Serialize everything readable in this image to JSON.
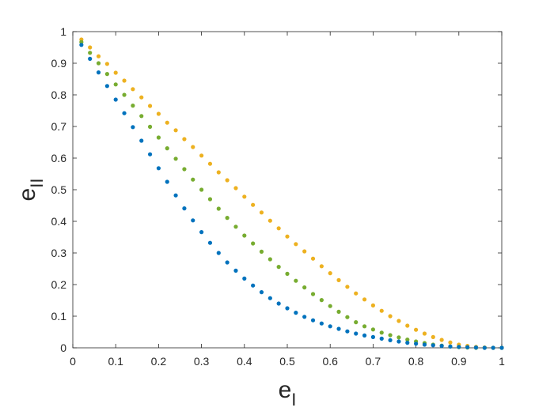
{
  "chart_data": {
    "type": "scatter",
    "title": "",
    "xlabel": {
      "base": "e",
      "sub": "I"
    },
    "ylabel": {
      "base": "e",
      "sub": "II"
    },
    "xlim": [
      0,
      1
    ],
    "ylim": [
      0,
      1
    ],
    "xticks": [
      "0",
      "0.1",
      "0.2",
      "0.3",
      "0.4",
      "0.5",
      "0.6",
      "0.7",
      "0.8",
      "0.9",
      "1"
    ],
    "yticks": [
      "0",
      "0.1",
      "0.2",
      "0.3",
      "0.4",
      "0.5",
      "0.6",
      "0.7",
      "0.8",
      "0.9",
      "1"
    ],
    "grid": false,
    "legend": "none",
    "x": [
      0.02,
      0.04,
      0.06,
      0.08,
      0.1,
      0.12,
      0.14,
      0.16,
      0.18,
      0.2,
      0.22,
      0.24,
      0.26,
      0.28,
      0.3,
      0.32,
      0.34,
      0.36,
      0.38,
      0.4,
      0.42,
      0.44,
      0.46,
      0.48,
      0.5,
      0.52,
      0.54,
      0.56,
      0.58,
      0.6,
      0.62,
      0.64,
      0.66,
      0.68,
      0.7,
      0.72,
      0.74,
      0.76,
      0.78,
      0.8,
      0.82,
      0.84,
      0.86,
      0.88,
      0.9,
      0.92,
      0.94,
      0.96,
      0.98,
      1.0
    ],
    "series": [
      {
        "color": "#EDB120",
        "values": [
          0.975,
          0.95,
          0.922,
          0.898,
          0.87,
          0.845,
          0.818,
          0.792,
          0.765,
          0.74,
          0.712,
          0.688,
          0.66,
          0.635,
          0.608,
          0.582,
          0.555,
          0.53,
          0.505,
          0.478,
          0.452,
          0.428,
          0.402,
          0.378,
          0.352,
          0.328,
          0.305,
          0.282,
          0.258,
          0.236,
          0.214,
          0.193,
          0.172,
          0.153,
          0.134,
          0.117,
          0.1,
          0.085,
          0.07,
          0.057,
          0.045,
          0.034,
          0.025,
          0.017,
          0.01,
          0.006,
          0.003,
          0.001,
          0.0,
          0.0
        ]
      },
      {
        "color": "#77AC30",
        "values": [
          0.967,
          0.933,
          0.9,
          0.866,
          0.833,
          0.8,
          0.766,
          0.733,
          0.699,
          0.665,
          0.631,
          0.598,
          0.565,
          0.532,
          0.5,
          0.47,
          0.44,
          0.411,
          0.383,
          0.355,
          0.33,
          0.304,
          0.28,
          0.256,
          0.234,
          0.212,
          0.191,
          0.17,
          0.151,
          0.132,
          0.114,
          0.097,
          0.081,
          0.068,
          0.058,
          0.048,
          0.04,
          0.033,
          0.026,
          0.02,
          0.015,
          0.01,
          0.007,
          0.004,
          0.002,
          0.001,
          0.0,
          0.0,
          0.0,
          0.0
        ]
      },
      {
        "color": "#0072BD",
        "values": [
          0.958,
          0.914,
          0.871,
          0.828,
          0.785,
          0.742,
          0.698,
          0.655,
          0.612,
          0.568,
          0.525,
          0.482,
          0.441,
          0.403,
          0.366,
          0.332,
          0.3,
          0.27,
          0.244,
          0.219,
          0.197,
          0.176,
          0.157,
          0.14,
          0.125,
          0.111,
          0.098,
          0.087,
          0.077,
          0.068,
          0.06,
          0.052,
          0.045,
          0.039,
          0.034,
          0.029,
          0.024,
          0.02,
          0.016,
          0.013,
          0.01,
          0.008,
          0.006,
          0.004,
          0.003,
          0.002,
          0.001,
          0.0,
          0.0,
          0.0
        ]
      }
    ]
  }
}
